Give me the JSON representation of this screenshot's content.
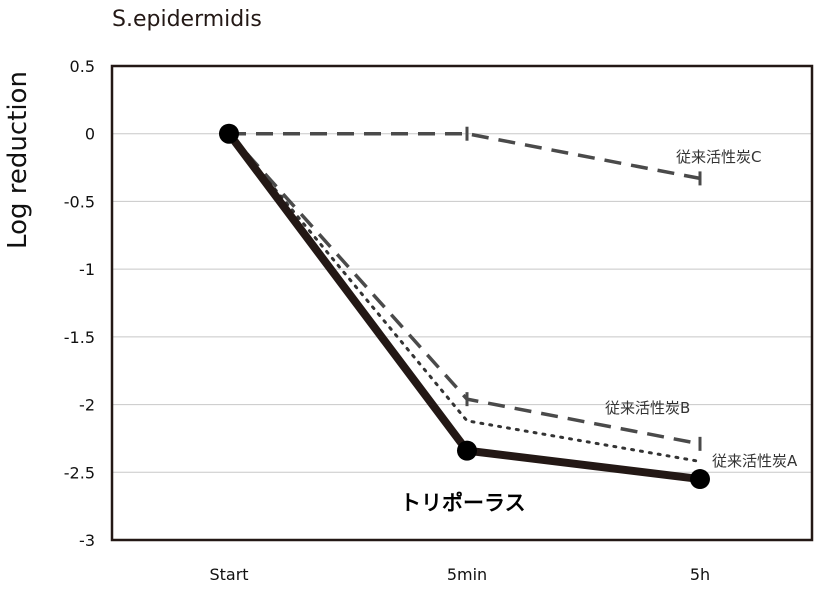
{
  "chart_data": {
    "type": "line",
    "title": "S.epidermidis",
    "ylabel": "Log reduction",
    "xlabel": "",
    "categories": [
      "Start",
      "5min",
      "5h"
    ],
    "ylim": [
      -3,
      0.5
    ],
    "yticks": [
      0.5,
      0,
      -0.5,
      -1,
      -1.5,
      -2,
      -2.5,
      -3
    ],
    "ytick_labels": [
      "0.5",
      "0",
      "-0.5",
      "-1",
      "-1.5",
      "-2",
      "-2.5",
      "-3"
    ],
    "grid": true,
    "series": [
      {
        "name": "トリポーラス",
        "style": "solid",
        "color": "#231815",
        "markers": true,
        "values": [
          0,
          -2.34,
          -2.55
        ]
      },
      {
        "name": "従来活性炭A",
        "style": "dotted",
        "color": "#333333",
        "markers": false,
        "values": [
          0,
          -2.12,
          -2.42
        ]
      },
      {
        "name": "従来活性炭B",
        "style": "dashed",
        "color": "#4a4a4a",
        "markers": false,
        "values": [
          0,
          -1.96,
          -2.29
        ]
      },
      {
        "name": "従来活性炭C",
        "style": "dashed",
        "color": "#4a4a4a",
        "markers": false,
        "values": [
          0,
          0,
          -0.33
        ]
      }
    ]
  }
}
